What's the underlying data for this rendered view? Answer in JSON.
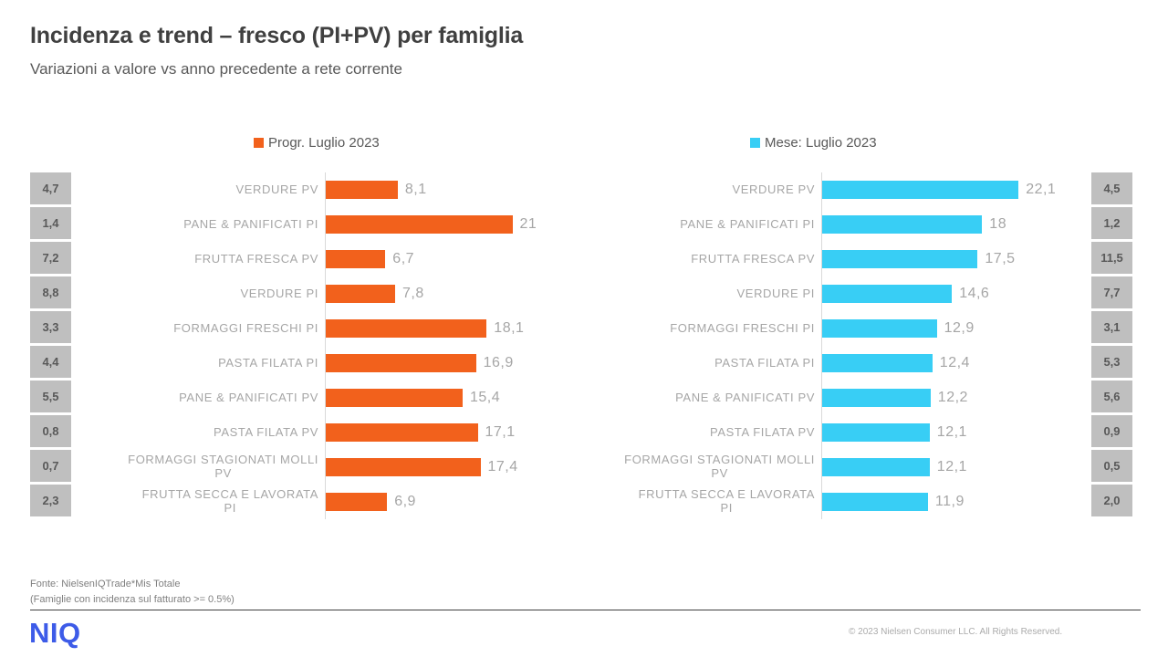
{
  "slide": {
    "title": "Incidenza e trend – fresco (PI+PV) per famiglia",
    "subtitle": "Variazioni a valore vs anno precedente a rete corrente",
    "source_line1": "Fonte: NielsenIQTrade*Mis Totale",
    "source_line2": "(Famiglie con incidenza sul fatturato  >=  0.5%)",
    "logo": "NIQ",
    "copyright": "© 2023  Nielsen Consumer LLC. All Rights Reserved."
  },
  "colors": {
    "orange": "#F2611C",
    "cyan": "#38CEF5",
    "box_bg": "#BFBFBF",
    "box_text": "#595959",
    "label_gray": "#A6A6A6",
    "axis_line": "#D9D9D9",
    "niq_blue": "#3D5BE8"
  },
  "chart_data": [
    {
      "type": "bar",
      "orientation": "horizontal",
      "title": "Progr. Luglio 2023",
      "legend_position": "top-center",
      "grid": false,
      "series_color": "#F2611C",
      "xlim": [
        0,
        23
      ],
      "xlabel": "",
      "ylabel": "",
      "categories": [
        "VERDURE PV",
        "PANE & PANIFICATI PI",
        "FRUTTA FRESCA PV",
        "VERDURE PI",
        "FORMAGGI FRESCHI PI",
        "PASTA FILATA PI",
        "PANE & PANIFICATI PV",
        "PASTA FILATA PV",
        "FORMAGGI STAGIONATI MOLLI\nPV",
        "FRUTTA SECCA E LAVORATA\nPI"
      ],
      "values": [
        8.1,
        21,
        6.7,
        7.8,
        18.1,
        16.9,
        15.4,
        17.1,
        17.4,
        6.9
      ],
      "value_labels": [
        "8,1",
        "21",
        "6,7",
        "7,8",
        "18,1",
        "16,9",
        "15,4",
        "17,1",
        "17,4",
        "6,9"
      ],
      "incidence_boxes": [
        "4,7",
        "1,4",
        "7,2",
        "8,8",
        "3,3",
        "4,4",
        "5,5",
        "0,8",
        "0,7",
        "2,3"
      ]
    },
    {
      "type": "bar",
      "orientation": "horizontal",
      "title": "Mese: Luglio 2023",
      "legend_position": "top-center",
      "grid": false,
      "series_color": "#38CEF5",
      "xlim": [
        0,
        23
      ],
      "xlabel": "",
      "ylabel": "",
      "categories": [
        "VERDURE PV",
        "PANE & PANIFICATI PI",
        "FRUTTA FRESCA PV",
        "VERDURE PI",
        "FORMAGGI FRESCHI PI",
        "PASTA FILATA PI",
        "PANE & PANIFICATI PV",
        "PASTA FILATA PV",
        "FORMAGGI STAGIONATI MOLLI\nPV",
        "FRUTTA SECCA E LAVORATA\nPI"
      ],
      "values": [
        22.1,
        18,
        17.5,
        14.6,
        12.9,
        12.4,
        12.2,
        12.1,
        12.1,
        11.9
      ],
      "value_labels": [
        "22,1",
        "18",
        "17,5",
        "14,6",
        "12,9",
        "12,4",
        "12,2",
        "12,1",
        "12,1",
        "11,9"
      ],
      "incidence_boxes": [
        "4,5",
        "1,2",
        "11,5",
        "7,7",
        "3,1",
        "5,3",
        "5,6",
        "0,9",
        "0,5",
        "2,0"
      ]
    }
  ]
}
